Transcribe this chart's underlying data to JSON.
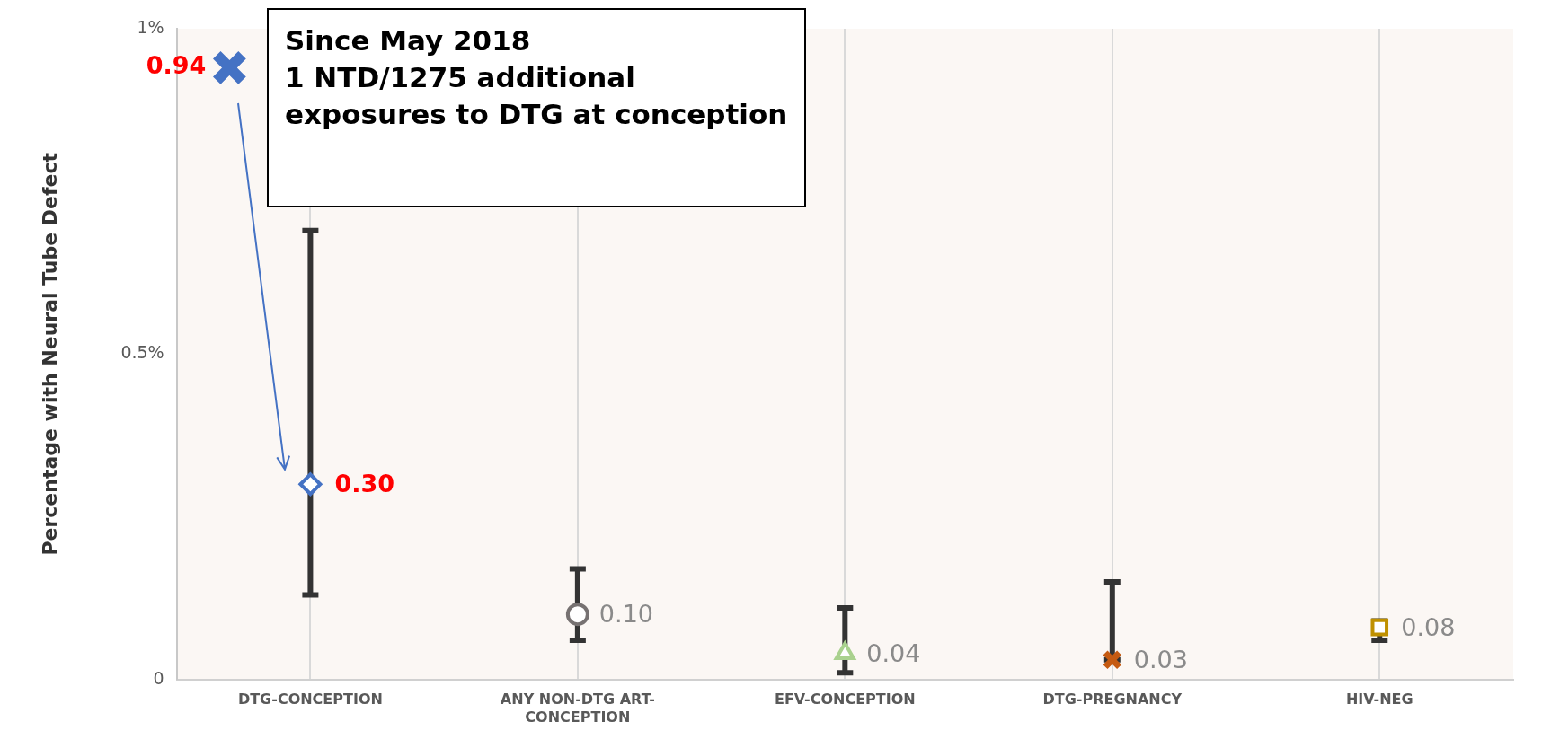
{
  "chart_data": {
    "type": "scatter",
    "ylabel": "Percentage with Neural Tube Defect",
    "categories": [
      "DTG-CONCEPTION",
      "ANY NON-DTG ART-CONCEPTION",
      "EFV-CONCEPTION",
      "DTG-PREGNANCY",
      "HIV-NEG"
    ],
    "ylim": [
      0,
      1
    ],
    "yticks": [
      0,
      {
        "value": 0.5,
        "label": "0.5%"
      },
      {
        "value": 1,
        "label": "1%"
      }
    ],
    "grid": "x",
    "legend": false,
    "series": [
      {
        "color": "#4472c4",
        "marker": "diamond",
        "values": [
          0.3,
          null,
          null,
          null,
          null
        ],
        "errors": [
          [
            0.13,
            0.69
          ],
          null,
          null,
          null,
          null
        ],
        "value_labels": [
          "0.30",
          null,
          null,
          null,
          null
        ]
      },
      {
        "color": "#767171",
        "marker": "circle",
        "values": [
          null,
          0.1,
          null,
          null,
          null
        ],
        "errors": [
          null,
          [
            0.06,
            0.17
          ],
          null,
          null,
          null
        ],
        "value_labels": [
          null,
          "0.10",
          null,
          null,
          null
        ]
      },
      {
        "color": "#a9d18e",
        "marker": "triangle",
        "values": [
          null,
          null,
          0.04,
          null,
          null
        ],
        "errors": [
          null,
          null,
          [
            0.01,
            0.11
          ],
          null,
          null
        ],
        "value_labels": [
          null,
          null,
          "0.04",
          null,
          null
        ]
      },
      {
        "color": "#c55a11",
        "marker": "cross",
        "values": [
          null,
          null,
          null,
          0.03,
          null
        ],
        "errors": [
          null,
          null,
          null,
          [
            0.03,
            0.15
          ],
          null
        ],
        "value_labels": [
          null,
          null,
          null,
          "0.03",
          null
        ]
      },
      {
        "color": "#bf9000",
        "marker": "square",
        "values": [
          null,
          null,
          null,
          null,
          0.08
        ],
        "errors": [
          null,
          null,
          null,
          null,
          [
            0.06,
            0.09
          ]
        ],
        "value_labels": [
          null,
          null,
          null,
          null,
          "0.08"
        ]
      },
      {
        "color": "#4472c4",
        "marker": "cross",
        "x": [
          "DTG-CONCEPTION"
        ],
        "values": [
          0.94
        ],
        "value_labels": [
          "0.94"
        ]
      }
    ],
    "annotations": [
      "Since May 2018\n1 NTD/1275 additional exposures to DTG at conception"
    ]
  }
}
